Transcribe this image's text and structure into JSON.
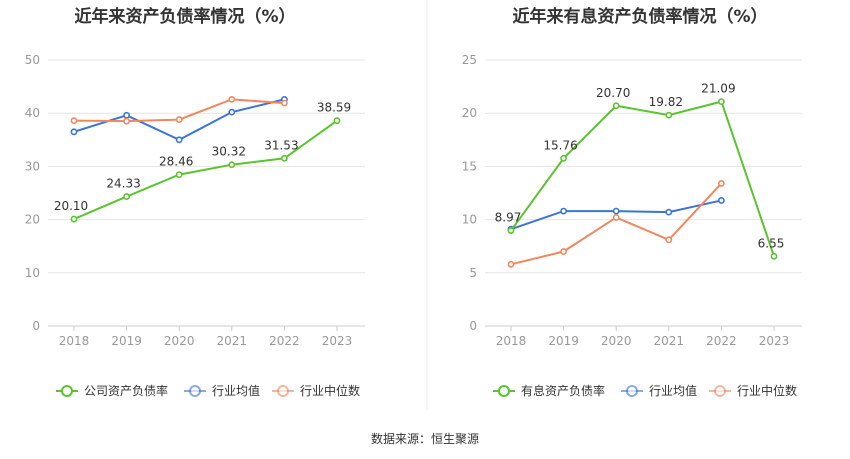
{
  "source_text": "数据来源：恒生聚源",
  "chart_data": [
    {
      "type": "line",
      "title": "近年来资产负债率情况（%）",
      "categories": [
        "2018",
        "2019",
        "2020",
        "2021",
        "2022",
        "2023"
      ],
      "ylim": [
        0,
        50
      ],
      "yticks": [
        "0",
        "10",
        "20",
        "30",
        "40",
        "50"
      ],
      "grid": true,
      "legend_position": "bottom",
      "series": [
        {
          "name": "公司资产负债率",
          "color": "#5ac42e",
          "values": [
            20.1,
            24.33,
            28.46,
            30.32,
            31.53,
            38.59
          ],
          "labels": [
            "20.10",
            "24.33",
            "28.46",
            "30.32",
            "31.53",
            "38.59"
          ]
        },
        {
          "name": "行业均值",
          "color": "#3b74d6",
          "values": [
            36.5,
            39.6,
            35.0,
            40.2,
            42.6,
            null
          ]
        },
        {
          "name": "行业中位数",
          "color": "#f0875e",
          "values": [
            38.6,
            38.5,
            38.8,
            42.6,
            41.9,
            null
          ]
        }
      ]
    },
    {
      "type": "line",
      "title": "近年来有息资产负债率情况（%）",
      "categories": [
        "2018",
        "2019",
        "2020",
        "2021",
        "2022",
        "2023"
      ],
      "ylim": [
        0,
        25
      ],
      "yticks": [
        "0",
        "5",
        "10",
        "15",
        "20",
        "25"
      ],
      "grid": true,
      "legend_position": "bottom",
      "series": [
        {
          "name": "有息资产负债率",
          "color": "#5ac42e",
          "values": [
            8.97,
            15.76,
            20.7,
            19.82,
            21.09,
            6.55
          ],
          "labels": [
            "8.97",
            "15.76",
            "20.70",
            "19.82",
            "21.09",
            "6.55"
          ]
        },
        {
          "name": "行业均值",
          "color": "#3b74d6",
          "values": [
            9.1,
            10.8,
            10.8,
            10.7,
            11.8,
            null
          ]
        },
        {
          "name": "行业中位数",
          "color": "#f0875e",
          "values": [
            5.8,
            7.0,
            10.2,
            8.1,
            13.4,
            null
          ]
        }
      ]
    }
  ]
}
